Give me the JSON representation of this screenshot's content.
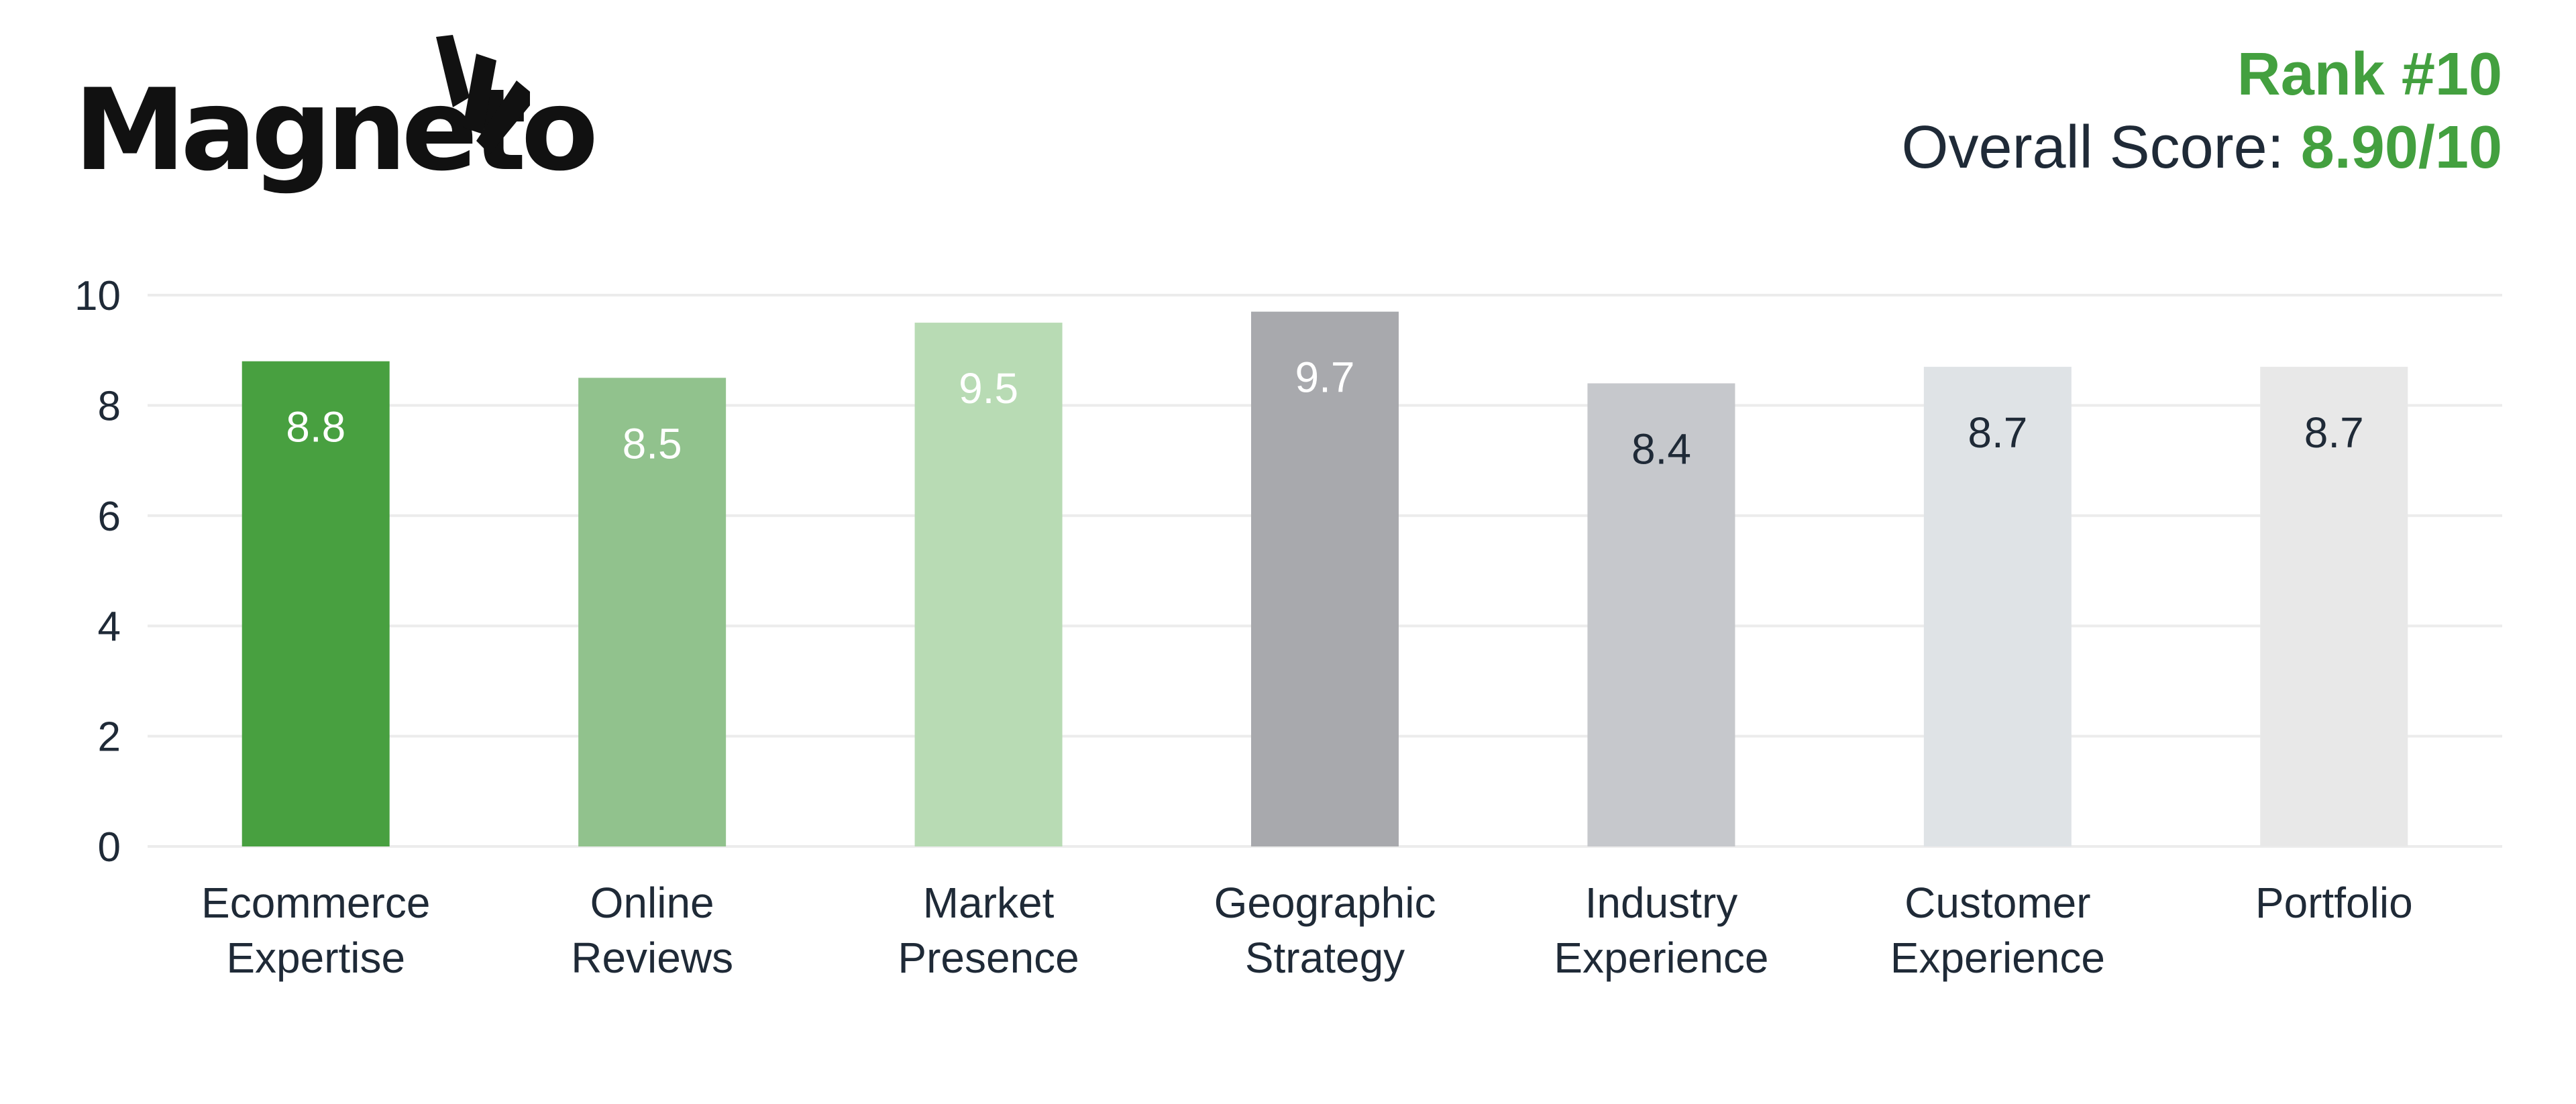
{
  "header": {
    "logo_text": "Magneto",
    "rank": "Rank #10",
    "overall_label": "Overall Score: ",
    "overall_value": "8.90/10"
  },
  "colors": {
    "accent": "#43a03f",
    "text": "#1f2a37",
    "grid": "#ececec"
  },
  "chart_data": {
    "type": "bar",
    "categories": [
      [
        "Ecommerce",
        "Expertise"
      ],
      [
        "Online",
        "Reviews"
      ],
      [
        "Market",
        "Presence"
      ],
      [
        "Geographic",
        "Strategy"
      ],
      [
        "Industry",
        "Experience"
      ],
      [
        "Customer",
        "Experience"
      ],
      [
        "Portfolio"
      ]
    ],
    "values": [
      8.8,
      8.5,
      9.5,
      9.7,
      8.4,
      8.7,
      8.7
    ],
    "bar_colors": [
      "#48a040",
      "#91c28d",
      "#b8dbb4",
      "#a8a9ad",
      "#c6c8cc",
      "#dfe3e6",
      "#e8e8e8"
    ],
    "label_colors": [
      "#ffffff",
      "#ffffff",
      "#ffffff",
      "#ffffff",
      "#1f2a37",
      "#1f2a37",
      "#1f2a37"
    ],
    "yticks": [
      0,
      2,
      4,
      6,
      8,
      10
    ],
    "ylim": [
      0,
      10
    ],
    "grid": true,
    "title": "",
    "xlabel": "",
    "ylabel": ""
  }
}
